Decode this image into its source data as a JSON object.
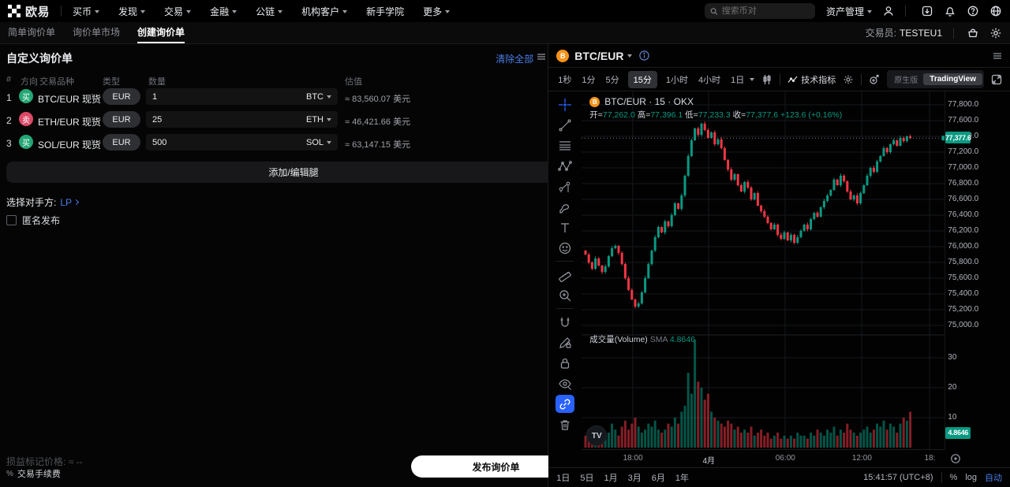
{
  "colors": {
    "accent_blue": "#4a7ce8",
    "up": "#089981",
    "down": "#f23645",
    "tv_blue": "#2962ff"
  },
  "topnav": {
    "brand": "欧易",
    "items": [
      "买币",
      "发现",
      "交易",
      "金融",
      "公链",
      "机构客户",
      "新手学院",
      "更多"
    ],
    "search_placeholder": "搜索币对",
    "assets_label": "资产管理",
    "icons": [
      "search-icon",
      "user-icon",
      "download-icon",
      "bell-icon",
      "help-icon",
      "globe-icon"
    ]
  },
  "tabs": {
    "items": [
      "简单询价单",
      "询价单市场",
      "创建询价单"
    ],
    "active": "创建询价单",
    "trader_label": "交易员:",
    "trader_value": "TESTEU1",
    "icons": [
      "portfolio-icon",
      "gear-icon"
    ]
  },
  "rfq": {
    "title": "自定义询价单",
    "clear_all": "清除全部",
    "columns": {
      "index": "#",
      "side": "方向",
      "instrument": "交易品种",
      "type": "类型",
      "amount": "数量",
      "value": "估值"
    },
    "legs": [
      {
        "index": "1",
        "side": "买",
        "side_color": "#23a776",
        "pair": "BTC/EUR 现货",
        "type": "EUR",
        "amount": "1",
        "ccy": "BTC",
        "value": "≈ 83,560.07 美元"
      },
      {
        "index": "2",
        "side": "卖",
        "side_color": "#dc4866",
        "pair": "ETH/EUR 现货",
        "type": "EUR",
        "amount": "25",
        "ccy": "ETH",
        "value": "≈ 46,421.66 美元"
      },
      {
        "index": "3",
        "side": "买",
        "side_color": "#23a776",
        "pair": "SOL/EUR 现货",
        "type": "EUR",
        "amount": "500",
        "ccy": "SOL",
        "value": "≈ 63,147.15 美元"
      }
    ],
    "add_edit_legs": "添加/编辑腿",
    "counterparty_label": "选择对手方:",
    "counterparty_value": "LP",
    "anonymous_label": "匿名发布",
    "pnl_label": "损益标记价格:",
    "pnl_value": "≈ --",
    "fee_pct": "%",
    "fee_label": "交易手续费",
    "submit": "发布询价单"
  },
  "chart": {
    "symbol": "BTC/EUR",
    "intervals": [
      "1秒",
      "1分",
      "5分",
      "15分",
      "1小时",
      "4小时",
      "1日"
    ],
    "active_interval": "15分",
    "indicators_label": "技术指标",
    "source_native": "原生版",
    "source_tv": "TradingView",
    "legend_title": "BTC/EUR · 15 · OKX",
    "btc_glyph": "B",
    "ohlc": {
      "o_l": "开=",
      "o": "77,262.0",
      "h_l": "高=",
      "h": "77,396.1",
      "l_l": "低=",
      "l": "77,233.3",
      "c_l": "收=",
      "c": "77,377.6",
      "chg": "+123.6 (+0.16%)"
    },
    "volume_label": "成交量(Volume)",
    "sma_label": "SMA",
    "sma_value": "4.8646",
    "watermark": "TV",
    "ranges": [
      "1日",
      "5日",
      "1月",
      "3月",
      "6月",
      "1年"
    ],
    "clock": "15:41:57 (UTC+8)",
    "scale_pct": "%",
    "scale_log": "log",
    "scale_auto": "自动"
  },
  "chart_data": {
    "type": "candlestick",
    "title": "BTC/EUR · 15 · OKX",
    "symbol": "BTC/EUR",
    "interval": "15分",
    "exchange": "OKX",
    "current": {
      "open": 77262.0,
      "high": 77396.1,
      "low": 77233.3,
      "close": 77377.6,
      "change": 123.6,
      "change_pct": 0.16
    },
    "last_price": 77377.6,
    "last_price_label": "77,377.6",
    "last_volume": 4.8646,
    "last_volume_label": "4.8646",
    "y_axis": {
      "min": 75000,
      "max": 77800,
      "tick_step": 200
    },
    "volume_axis": {
      "ticks": [
        10,
        20,
        30
      ]
    },
    "x_labels": [
      {
        "label": "18:00",
        "pos": 0.141,
        "major": false
      },
      {
        "label": "4月",
        "pos": 0.35,
        "major": true
      },
      {
        "label": "06:00",
        "pos": 0.561,
        "major": false
      },
      {
        "label": "12:00",
        "pos": 0.772,
        "major": false
      },
      {
        "label": "18:",
        "pos": 0.959,
        "major": false
      }
    ],
    "first_open": 75950,
    "closes": [
      75900,
      75800,
      75720,
      75850,
      75760,
      75680,
      75750,
      75880,
      75980,
      76010,
      75920,
      75780,
      75600,
      75450,
      75330,
      75240,
      75280,
      75420,
      75600,
      75780,
      75950,
      76120,
      76250,
      76180,
      76320,
      76260,
      76400,
      76550,
      76480,
      76650,
      76900,
      77150,
      77350,
      77500,
      77420,
      77560,
      77480,
      77380,
      77450,
      77300,
      77360,
      77250,
      77100,
      76980,
      76850,
      76920,
      76780,
      76700,
      76820,
      76750,
      76600,
      76680,
      76520,
      76450,
      76380,
      76300,
      76220,
      76280,
      76150,
      76100,
      76180,
      76080,
      76150,
      76050,
      76120,
      76200,
      76280,
      76220,
      76350,
      76430,
      76380,
      76500,
      76580,
      76650,
      76720,
      76850,
      76780,
      76900,
      76830,
      76700,
      76600,
      76650,
      76550,
      76680,
      76780,
      76900,
      77000,
      76950,
      77080,
      77150,
      77250,
      77200,
      77300,
      77350,
      77280,
      77380,
      77340,
      77400,
      77377.6
    ],
    "volumes": [
      4,
      6,
      3,
      5,
      7,
      4,
      3,
      5,
      8,
      6,
      4,
      7,
      9,
      6,
      8,
      10,
      7,
      5,
      6,
      8,
      7,
      9,
      6,
      5,
      6,
      8,
      7,
      10,
      8,
      12,
      14,
      25,
      18,
      36,
      22,
      20,
      16,
      18,
      12,
      10,
      9,
      8,
      7,
      9,
      8,
      6,
      7,
      5,
      6,
      5,
      7,
      4,
      5,
      6,
      4,
      5,
      3,
      4,
      5,
      3,
      4,
      3,
      4,
      3,
      5,
      4,
      4,
      3,
      5,
      4,
      6,
      5,
      4,
      6,
      5,
      7,
      4,
      6,
      5,
      8,
      6,
      5,
      4,
      5,
      6,
      7,
      5,
      6,
      8,
      7,
      9,
      6,
      8,
      7,
      5,
      8,
      10,
      9,
      12
    ],
    "up_color": "#089981",
    "down_color": "#f23645"
  }
}
